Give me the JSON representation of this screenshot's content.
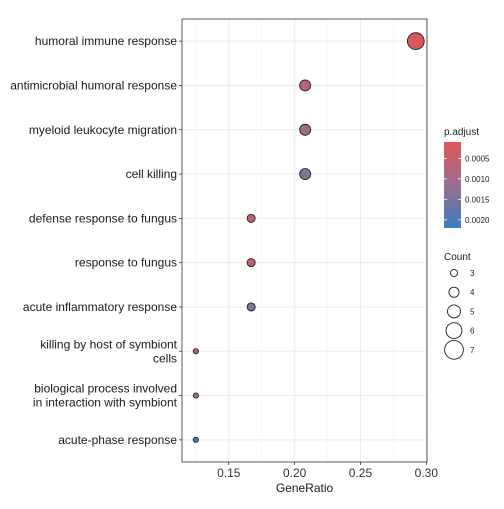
{
  "chart_data": {
    "type": "scatter",
    "title": "",
    "xlabel": "GeneRatio",
    "ylabel": "",
    "xlim": [
      0.1145,
      0.3005
    ],
    "xticks": [
      0.15,
      0.2,
      0.25,
      0.3
    ],
    "xtick_labels": [
      "0.15",
      "0.20",
      "0.25",
      "0.30"
    ],
    "grid": true,
    "categories": [
      "humoral immune response",
      "antimicrobial humoral response",
      "myeloid leukocyte migration",
      "cell killing",
      "defense response to fungus",
      "response to fungus",
      "acute inflammatory response",
      "killing by host of symbiont cells",
      "biological process involved in interaction with symbiont",
      "acute-phase response"
    ],
    "category_display": [
      [
        "humoral immune response"
      ],
      [
        "antimicrobial humoral response"
      ],
      [
        "myeloid leukocyte migration"
      ],
      [
        "cell killing"
      ],
      [
        "defense response to fungus"
      ],
      [
        "response to fungus"
      ],
      [
        "acute inflammatory response"
      ],
      [
        "killing by host of symbiont",
        "cells"
      ],
      [
        "biological process involved",
        "in interaction with symbiont"
      ],
      [
        "acute-phase response"
      ]
    ],
    "points": [
      {
        "category": "humoral immune response",
        "x": 0.292,
        "count": 7,
        "p_adjust": 0.0002
      },
      {
        "category": "antimicrobial humoral response",
        "x": 0.208,
        "count": 5,
        "p_adjust": 0.00068
      },
      {
        "category": "myeloid leukocyte migration",
        "x": 0.208,
        "count": 5,
        "p_adjust": 0.0011
      },
      {
        "category": "cell killing",
        "x": 0.208,
        "count": 5,
        "p_adjust": 0.0014
      },
      {
        "category": "defense response to fungus",
        "x": 0.167,
        "count": 4,
        "p_adjust": 0.0005
      },
      {
        "category": "response to fungus",
        "x": 0.167,
        "count": 4,
        "p_adjust": 0.00055
      },
      {
        "category": "acute inflammatory response",
        "x": 0.167,
        "count": 4,
        "p_adjust": 0.0014
      },
      {
        "category": "killing by host of symbiont cells",
        "x": 0.125,
        "count": 3,
        "p_adjust": 0.0008
      },
      {
        "category": "biological process involved in interaction with symbiont",
        "x": 0.125,
        "count": 3,
        "p_adjust": 0.0011
      },
      {
        "category": "acute-phase response",
        "x": 0.125,
        "count": 3,
        "p_adjust": 0.0021
      }
    ],
    "color_legend": {
      "title": "p.adjust",
      "range": [
        0.0001,
        0.0022
      ],
      "ticks": [
        0.0005,
        0.001,
        0.0015,
        0.002
      ],
      "tick_labels": [
        "0.0005",
        "0.0010",
        "0.0015",
        "0.0020"
      ],
      "low_color": "#e15759",
      "mid_color": "#9a6e8f",
      "high_color": "#3a7dbf"
    },
    "size_legend": {
      "title": "Count",
      "values": [
        3,
        4,
        5,
        6,
        7
      ],
      "labels": [
        "3",
        "4",
        "5",
        "6",
        "7"
      ]
    },
    "legend_position": "right"
  }
}
